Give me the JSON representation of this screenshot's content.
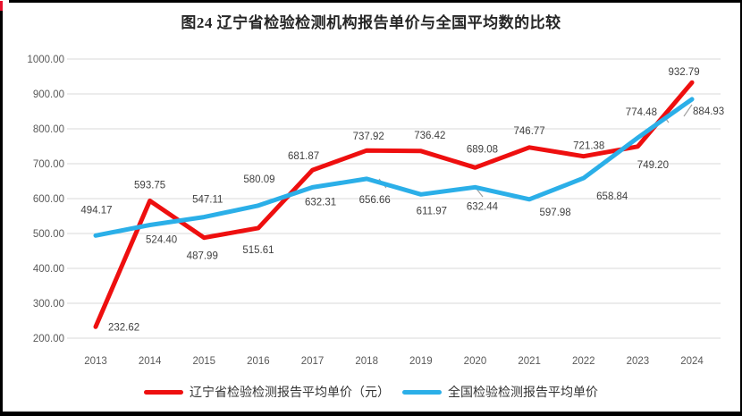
{
  "title": "图24 辽宁省检验检测机构报告单价与全国平均数的比较",
  "chart_data": {
    "type": "line",
    "title": "图24 辽宁省检验检测机构报告单价与全国平均数的比较",
    "categories": [
      "2013",
      "2014",
      "2015",
      "2016",
      "2017",
      "2018",
      "2019",
      "2020",
      "2021",
      "2022",
      "2023",
      "2024"
    ],
    "series": [
      {
        "name": "辽宁省检验检测报告平均单价（元）",
        "color": "#ee0f0f",
        "values": [
          232.62,
          593.75,
          487.99,
          515.61,
          681.87,
          737.92,
          736.42,
          689.08,
          746.77,
          721.38,
          749.2,
          932.79
        ]
      },
      {
        "name": "全国检验检测报告平均单价",
        "color": "#2bafe8",
        "values": [
          494.17,
          524.4,
          547.11,
          580.09,
          632.31,
          656.66,
          611.97,
          632.44,
          597.98,
          658.84,
          774.48,
          884.93
        ]
      }
    ],
    "ylim": [
      200,
      1000
    ],
    "ytick_step": 100,
    "ytick_labels": [
      "1000.00",
      "900.00",
      "800.00",
      "700.00",
      "600.00",
      "500.00",
      "400.00",
      "300.00",
      "200.00"
    ],
    "xlabel": "",
    "ylabel": "",
    "grid": true,
    "legend_position": "bottom",
    "data_labels": true,
    "label_decimals": 2
  },
  "colors": {
    "grid": "#d9d9d9",
    "axis_text": "#595959",
    "data_label": "#404040",
    "leader": "#a0a0a0",
    "frame_border": "#000000",
    "frame_accent": "#e8112d"
  }
}
